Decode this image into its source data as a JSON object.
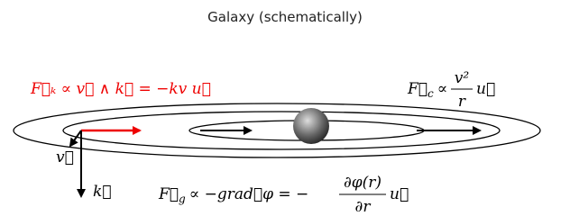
{
  "title": "Galaxy (schematically)",
  "friction": {
    "formula": "F⃗ₖ ∝ v⃗ ∧ k⃗ = −kv u⃗"
  },
  "centripetal": {
    "symbol": "F⃗",
    "sub": "c",
    "rel": "∝",
    "num": "v²",
    "den": "r",
    "tail": "u⃗"
  },
  "gravity": {
    "symbol": "F⃗",
    "sub": "g",
    "rel": "∝ −grad⃗φ = −",
    "num": "∂φ(r)",
    "den": "∂r",
    "tail": "u⃗"
  },
  "vectors": {
    "v": "v⃗",
    "k": "k⃗"
  }
}
